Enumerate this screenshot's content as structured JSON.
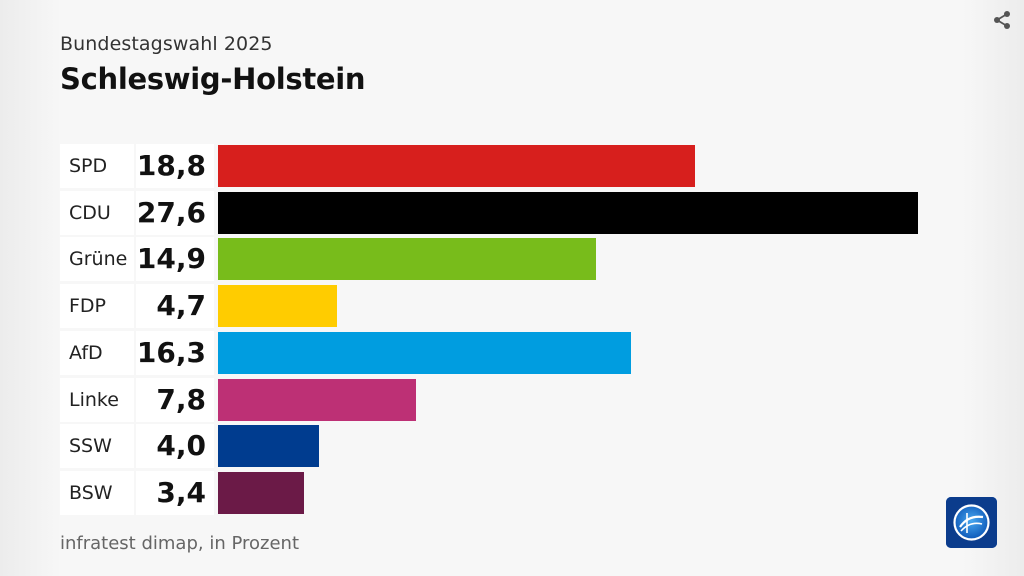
{
  "header": {
    "subtitle": "Bundestagswahl 2025",
    "title": "Schleswig-Holstein"
  },
  "footer": {
    "source": "infratest dimap, in Prozent"
  },
  "icons": {
    "share": "share-icon",
    "logo": "broadcaster-logo-icon"
  },
  "chart_data": {
    "type": "bar",
    "orientation": "horizontal",
    "categories": [
      "SPD",
      "CDU",
      "Grüne",
      "FDP",
      "AfD",
      "Linke",
      "SSW",
      "BSW"
    ],
    "values": [
      18.8,
      27.6,
      14.9,
      4.7,
      16.3,
      7.8,
      4.0,
      3.4
    ],
    "value_labels": [
      "18,8",
      "27,6",
      "14,9",
      "4,7",
      "16,3",
      "7,8",
      "4,0",
      "3,4"
    ],
    "colors": [
      "#d71f1d",
      "#000000",
      "#78bc1b",
      "#ffcc00",
      "#009de0",
      "#bd3075",
      "#003c8f",
      "#6b1a47"
    ],
    "unit": "Prozent",
    "grid": false,
    "legend": "none"
  }
}
